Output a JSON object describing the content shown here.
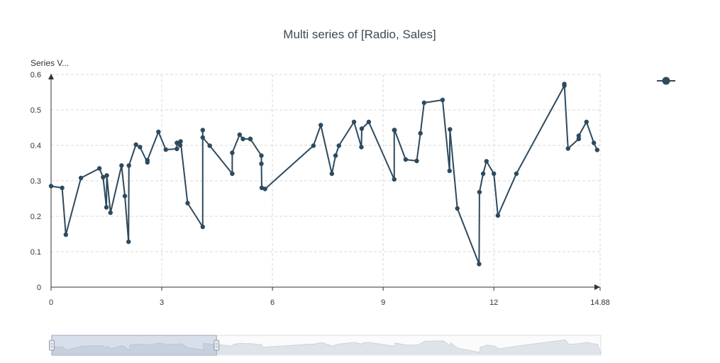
{
  "chart_data": {
    "type": "line",
    "title": "Multi series of [Radio, Sales]",
    "ylabel": "Series V...",
    "xlabel": "",
    "xlim": [
      0,
      14.88
    ],
    "ylim": [
      0,
      0.6
    ],
    "x_ticks": [
      "0",
      "3",
      "6",
      "9",
      "12",
      "14.88"
    ],
    "y_ticks": [
      "0",
      "0.1",
      "0.2",
      "0.3",
      "0.4",
      "0.5",
      "0.6"
    ],
    "grid": true,
    "legend": "top-right",
    "series_color": "#2d4a5e",
    "series": [
      {
        "x": [
          0.0,
          0.3,
          0.4,
          0.81,
          1.31,
          1.41,
          1.5,
          1.51,
          1.61,
          1.91,
          2.0,
          2.1,
          2.11,
          2.3,
          2.41,
          2.61,
          2.61,
          2.91,
          3.11,
          3.41,
          3.41,
          3.5,
          3.51,
          3.7,
          4.11,
          4.11,
          4.11,
          4.3,
          4.91,
          4.91,
          5.11,
          5.2,
          5.4,
          5.4,
          5.4,
          5.7,
          5.7,
          5.71,
          5.8,
          7.11,
          7.31,
          7.61,
          7.71,
          7.8,
          8.21,
          8.41,
          8.42,
          8.61,
          9.3,
          9.3,
          9.31,
          9.61,
          9.91,
          10.01,
          10.11,
          10.61,
          10.8,
          10.81,
          11.01,
          11.6,
          11.61,
          11.71,
          11.8,
          12.0,
          12.11,
          12.61,
          13.91,
          13.91,
          14.01,
          14.3,
          14.3,
          14.51,
          14.71,
          14.8
        ],
        "values": [
          0.285,
          0.28,
          0.148,
          0.308,
          0.335,
          0.31,
          0.225,
          0.315,
          0.21,
          0.343,
          0.257,
          0.128,
          0.343,
          0.402,
          0.395,
          0.352,
          0.358,
          0.438,
          0.388,
          0.39,
          0.407,
          0.4,
          0.411,
          0.237,
          0.17,
          0.443,
          0.422,
          0.399,
          0.32,
          0.379,
          0.43,
          0.418,
          0.418,
          0.418,
          0.418,
          0.371,
          0.348,
          0.28,
          0.277,
          0.399,
          0.457,
          0.32,
          0.371,
          0.399,
          0.466,
          0.395,
          0.447,
          0.466,
          0.304,
          0.443,
          0.443,
          0.36,
          0.356,
          0.434,
          0.52,
          0.528,
          0.328,
          0.445,
          0.222,
          0.065,
          0.268,
          0.32,
          0.355,
          0.32,
          0.202,
          0.32,
          0.568,
          0.573,
          0.391,
          0.418,
          0.427,
          0.466,
          0.407,
          0.387
        ]
      }
    ],
    "data_zoom": {
      "range_start": 0,
      "range_end": 0.3
    }
  }
}
